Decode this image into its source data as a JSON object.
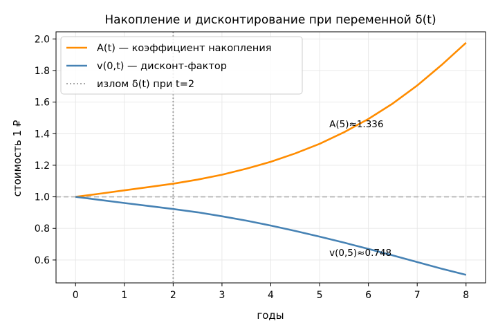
{
  "chart_data": {
    "type": "line",
    "title": "Накопление и дисконтирование при переменной δ(t)",
    "xlabel": "годы",
    "ylabel": "стоимость 1 ₽",
    "xlim": [
      -0.4,
      8.4
    ],
    "ylim": [
      0.455,
      2.045
    ],
    "xticks": [
      0,
      1,
      2,
      3,
      4,
      5,
      6,
      7,
      8
    ],
    "yticks": [
      0.6,
      0.8,
      1.0,
      1.2,
      1.4,
      1.6,
      1.8,
      2.0
    ],
    "yticklabels": [
      "0.6",
      "0.8",
      "1.0",
      "1.2",
      "1.4",
      "1.6",
      "1.8",
      "2.0"
    ],
    "grid": true,
    "legend_position": "top-left",
    "series": [
      {
        "name": "A(t) — коэффициент накопления",
        "color": "#ff8c00",
        "x": [
          0,
          0.5,
          1,
          1.5,
          2,
          2.5,
          3,
          3.5,
          4,
          4.5,
          5,
          5.5,
          6,
          6.5,
          7,
          7.5,
          8
        ],
        "y": [
          1.0,
          1.02,
          1.041,
          1.062,
          1.083,
          1.109,
          1.14,
          1.178,
          1.222,
          1.275,
          1.336,
          1.409,
          1.493,
          1.591,
          1.705,
          1.835,
          1.976
        ]
      },
      {
        "name": "v(0,t) — дисконт-фактор",
        "color": "#4682b4",
        "x": [
          0,
          0.5,
          1,
          1.5,
          2,
          2.5,
          3,
          3.5,
          4,
          4.5,
          5,
          5.5,
          6,
          6.5,
          7,
          7.5,
          8
        ],
        "y": [
          1.0,
          0.98,
          0.961,
          0.942,
          0.923,
          0.902,
          0.877,
          0.849,
          0.818,
          0.784,
          0.748,
          0.71,
          0.67,
          0.629,
          0.587,
          0.545,
          0.506
        ]
      }
    ],
    "reference_lines": [
      {
        "orientation": "horizontal",
        "value": 1.0,
        "style": "dashed",
        "color": "#b0b0b0"
      },
      {
        "orientation": "vertical",
        "value": 2,
        "style": "dotted",
        "color": "#999999",
        "legend": "излом δ(t) при t=2"
      }
    ],
    "annotations": [
      {
        "text": "A(5)≈1.336",
        "x": 5.2,
        "y": 1.44
      },
      {
        "text": "v(0,5)≈0.748",
        "x": 5.2,
        "y": 0.625
      }
    ]
  }
}
